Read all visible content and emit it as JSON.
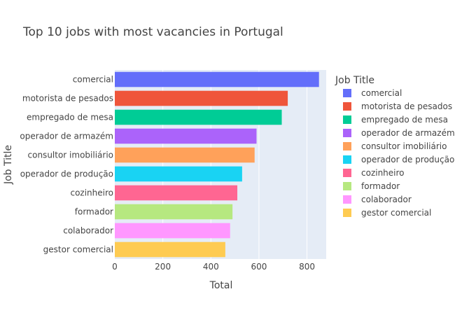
{
  "chart_data": {
    "type": "bar",
    "orientation": "horizontal",
    "title": "Top 10 jobs with most vacancies in Portugal",
    "xlabel": "Total",
    "ylabel": "Job Title",
    "xlim": [
      0,
      880
    ],
    "xticks": [
      0,
      200,
      400,
      600,
      800
    ],
    "grid": true,
    "legend": {
      "title": "Job Title",
      "placement": "right"
    },
    "categories": [
      "comercial",
      "motorista de pesados",
      "empregado de mesa",
      "operador de armazém",
      "consultor imobiliário",
      "operador de produção",
      "cozinheiro",
      "formador",
      "colaborador",
      "gestor comercial"
    ],
    "values": [
      850,
      720,
      695,
      590,
      582,
      530,
      510,
      490,
      480,
      460
    ],
    "colors": [
      "#636efa",
      "#ef553b",
      "#00cc96",
      "#ab63fa",
      "#ffa15a",
      "#19d3f3",
      "#ff6692",
      "#b6e880",
      "#ff97ff",
      "#fecb52"
    ]
  }
}
